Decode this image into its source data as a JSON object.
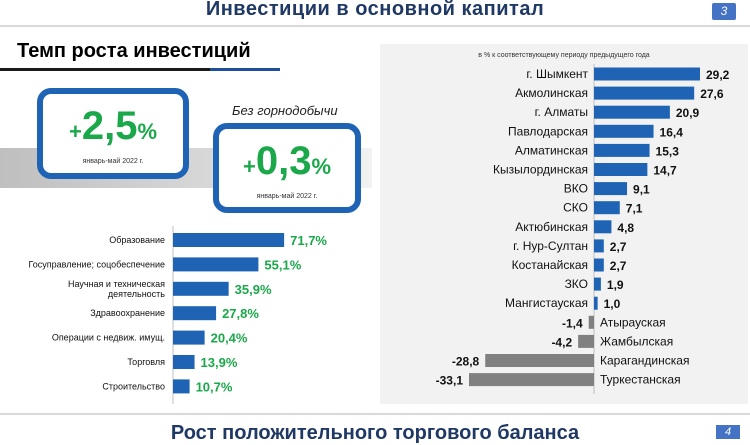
{
  "header": {
    "title": "Инвестиции в основной капитал",
    "page": "3"
  },
  "section": {
    "title": "Темп роста инвестиций"
  },
  "kpis": [
    {
      "sign": "+",
      "value": "2,5",
      "unit": "%",
      "period": "январь-май 2022 г."
    },
    {
      "label": "Без горнодобычи",
      "sign": "+",
      "value": "0,3",
      "unit": "%",
      "period": "январь-май 2022 г."
    }
  ],
  "colors": {
    "blue": "#1f63b5",
    "green": "#1aa84a",
    "grey": "#808080",
    "title": "#1f3864"
  },
  "chart_data": [
    {
      "type": "bar",
      "orientation": "horizontal",
      "categories": [
        "Образование",
        "Госуправление; соцобеспечение",
        "Научная и техническая деятельность",
        "Здравоохранение",
        "Операции с недвиж. имущ.",
        "Торговля",
        "Строительство"
      ],
      "category_lines": [
        [
          "Образование"
        ],
        [
          "Госуправление; соцобеспечение"
        ],
        [
          "Научная и техническая",
          "деятельность"
        ],
        [
          "Здравоохранение"
        ],
        [
          "Операции с недвиж. имущ."
        ],
        [
          "Торговля"
        ],
        [
          "Строительство"
        ]
      ],
      "values": [
        71.7,
        55.1,
        35.9,
        27.8,
        20.4,
        13.9,
        10.7
      ],
      "labels": [
        "71,7%",
        "55,1%",
        "35,9%",
        "27,8%",
        "20,4%",
        "13,9%",
        "10,7%"
      ],
      "xlim": [
        0,
        100
      ]
    },
    {
      "type": "bar",
      "orientation": "horizontal",
      "note": "в % к соответствующему периоду предыдущего года",
      "categories": [
        "г. Шымкент",
        "Акмолинская",
        "г. Алматы",
        "Павлодарская",
        "Алматинская",
        "Кызылординская",
        "ВКО",
        "СКО",
        "Актюбинская",
        "г. Нур-Султан",
        "Костанайская",
        "ЗКО",
        "Мангистауская",
        "Атырауская",
        "Жамбылская",
        "Карагандинская",
        "Туркестанская"
      ],
      "values": [
        29.2,
        27.6,
        20.9,
        16.4,
        15.3,
        14.7,
        9.1,
        7.1,
        4.8,
        2.7,
        2.7,
        1.9,
        1.0,
        -1.4,
        -4.2,
        -28.8,
        -33.1
      ],
      "labels": [
        "29,2",
        "27,6",
        "20,9",
        "16,4",
        "15,3",
        "14,7",
        "9,1",
        "7,1",
        "4,8",
        "2,7",
        "2,7",
        "1,9",
        "1,0",
        "-1,4",
        "-4,2",
        "-28,8",
        "-33,1"
      ],
      "xlim": [
        -33.1,
        29.2
      ]
    }
  ],
  "footer": {
    "title": "Рост положительного торгового баланса",
    "page": "4"
  }
}
